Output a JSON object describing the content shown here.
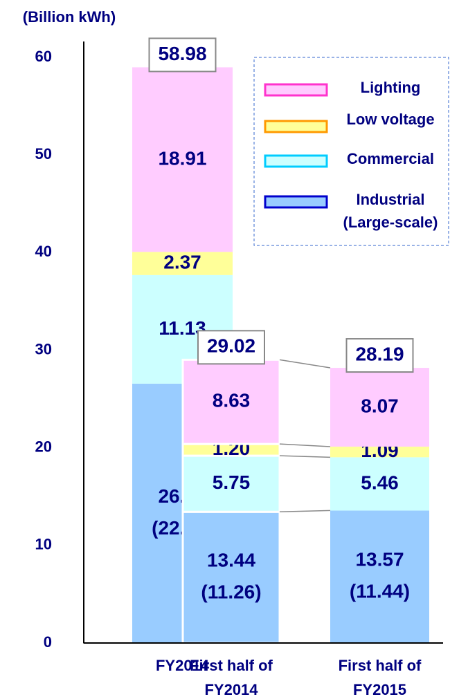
{
  "chart_data": {
    "type": "stacked-bar",
    "y_label": "(Billion kWh)",
    "categories": [
      "FY2014",
      "First half of FY2014",
      "First half of FY2015"
    ],
    "series": [
      {
        "name": "Industrial (Large-scale)",
        "color": "#99ccff",
        "legend_border": "#0000cc",
        "values": [
          26.57,
          13.44,
          13.57
        ],
        "sublabels": [
          "(22.24)",
          "(11.26)",
          "(11.44)"
        ]
      },
      {
        "name": "Commercial",
        "color": "#ccffff",
        "legend_border": "#00ccff",
        "values": [
          11.13,
          5.75,
          5.46
        ]
      },
      {
        "name": "Low voltage",
        "color": "#ffff99",
        "legend_border": "#ff9900",
        "values": [
          2.37,
          1.2,
          1.09
        ],
        "value_labels": [
          "2.37",
          "1.20",
          "1.09"
        ]
      },
      {
        "name": "Lighting",
        "color": "#ffccff",
        "legend_border": "#ff33cc",
        "values": [
          18.91,
          8.63,
          8.07
        ]
      }
    ],
    "totals": [
      58.98,
      29.02,
      28.19
    ],
    "ylim": [
      0,
      60
    ],
    "yticks": [
      0,
      10,
      20,
      30,
      40,
      50,
      60
    ],
    "grid": false,
    "legend": "upper right"
  }
}
